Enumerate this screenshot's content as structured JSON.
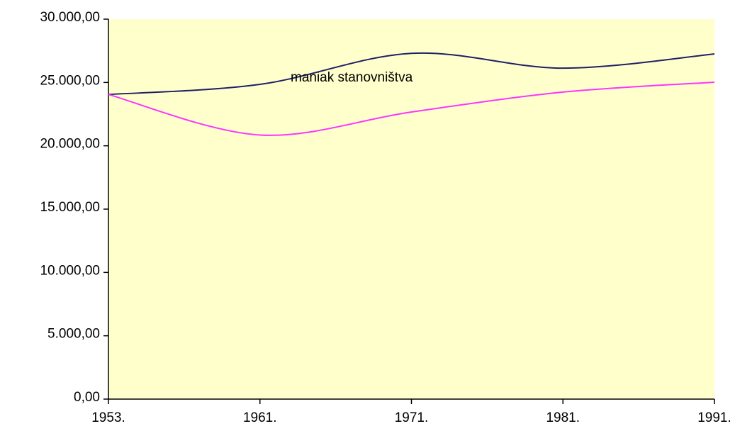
{
  "chart_data": {
    "type": "line",
    "categories": [
      "1953.",
      "1961.",
      "1971.",
      "1981.",
      "1991."
    ],
    "series": [
      {
        "color": "#1f1f66",
        "values": [
          24050,
          24850,
          27300,
          26130,
          27250
        ]
      },
      {
        "color": "#ff33ff",
        "values": [
          24050,
          20850,
          22670,
          24240,
          25020
        ]
      }
    ],
    "ylim": [
      0,
      30000
    ],
    "yticks": [
      {
        "value": 0,
        "label": "0,00"
      },
      {
        "value": 5000,
        "label": "5.000,00"
      },
      {
        "value": 10000,
        "label": "10.000,00"
      },
      {
        "value": 15000,
        "label": "15.000,00"
      },
      {
        "value": 20000,
        "label": "20.000,00"
      },
      {
        "value": 25000,
        "label": "25.000,00"
      },
      {
        "value": 30000,
        "label": "30.000,00"
      }
    ],
    "annotation": "maniak stanovništva",
    "grid": false,
    "background": "#ffffcc"
  }
}
